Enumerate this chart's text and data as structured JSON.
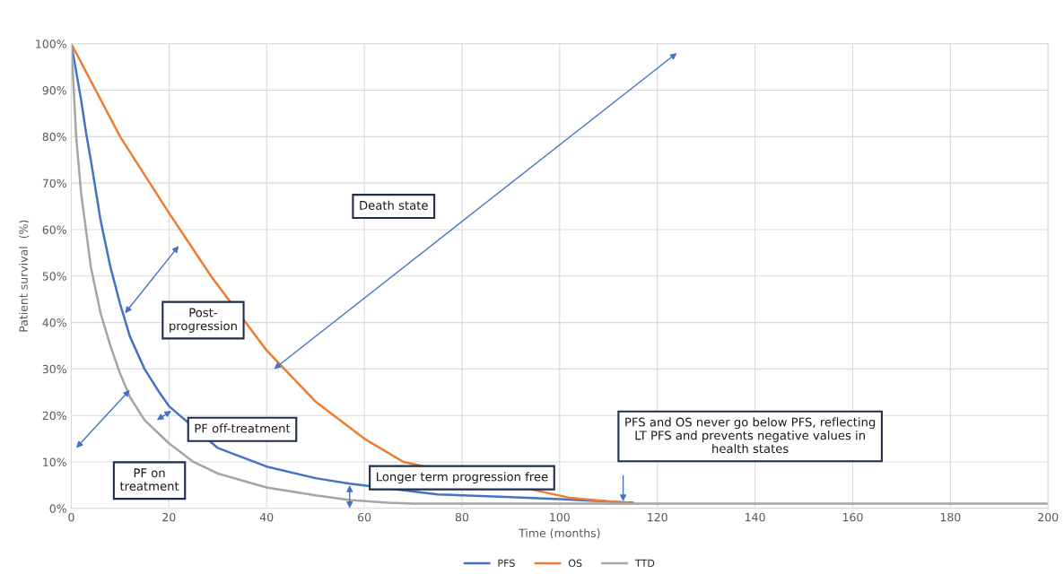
{
  "chart_data": {
    "type": "line",
    "xlabel": "Time (months)",
    "ylabel": "Patient survival  (%)",
    "xlim": [
      0,
      200
    ],
    "xticks": [
      0,
      20,
      40,
      60,
      80,
      100,
      120,
      140,
      160,
      180,
      200
    ],
    "ylim": [
      0,
      100
    ],
    "yticks": [
      {
        "value": 0,
        "label": "0%"
      },
      {
        "value": 10,
        "label": "10%"
      },
      {
        "value": 20,
        "label": "20%"
      },
      {
        "value": 30,
        "label": "30%"
      },
      {
        "value": 40,
        "label": "40%"
      },
      {
        "value": 50,
        "label": "50%"
      },
      {
        "value": 60,
        "label": "60%"
      },
      {
        "value": 70,
        "label": "70%"
      },
      {
        "value": 80,
        "label": "80%"
      },
      {
        "value": 90,
        "label": "90%"
      },
      {
        "value": 100,
        "label": "100%"
      }
    ],
    "grid": true,
    "legend": "bottom",
    "marker": "none",
    "line_style": "solid",
    "series": [
      {
        "name": "PFS",
        "color": "#4472c4",
        "x": [
          0,
          1,
          2,
          3,
          4,
          6,
          8,
          10,
          12,
          15,
          18,
          20,
          30,
          40,
          50,
          57,
          75,
          90,
          100,
          115
        ],
        "values": [
          100,
          94,
          88,
          81,
          75,
          62,
          52,
          44,
          37,
          30,
          25,
          22,
          13,
          9,
          6.5,
          5.3,
          3,
          2.4,
          2,
          1.2
        ]
      },
      {
        "name": "OS",
        "color": "#ed7d31",
        "x": [
          0,
          10,
          20,
          28.6,
          40,
          50,
          60,
          68,
          102,
          110,
          114
        ],
        "values": [
          100,
          80,
          63.6,
          50,
          34,
          23,
          15,
          10,
          2.3,
          1.5,
          1.2
        ]
      },
      {
        "name": "TTD",
        "color": "#a5a5a5",
        "x": [
          0,
          1,
          2,
          4,
          6,
          8,
          10,
          12,
          15,
          20,
          25,
          30,
          40,
          50,
          57,
          65,
          70,
          200
        ],
        "values": [
          100,
          80,
          68,
          52,
          42,
          35,
          29,
          24,
          19,
          14,
          10,
          7.5,
          4.5,
          2.8,
          1.8,
          1.2,
          1,
          1
        ]
      }
    ],
    "annotations": [
      "Death state",
      "Post-\nprogression",
      "PF off-treatment",
      "PF on\ntreatment",
      "Longer term progression free",
      "PFS and OS never go below PFS, reflecting\nLT PFS and prevents negative values in\nhealth states"
    ]
  }
}
